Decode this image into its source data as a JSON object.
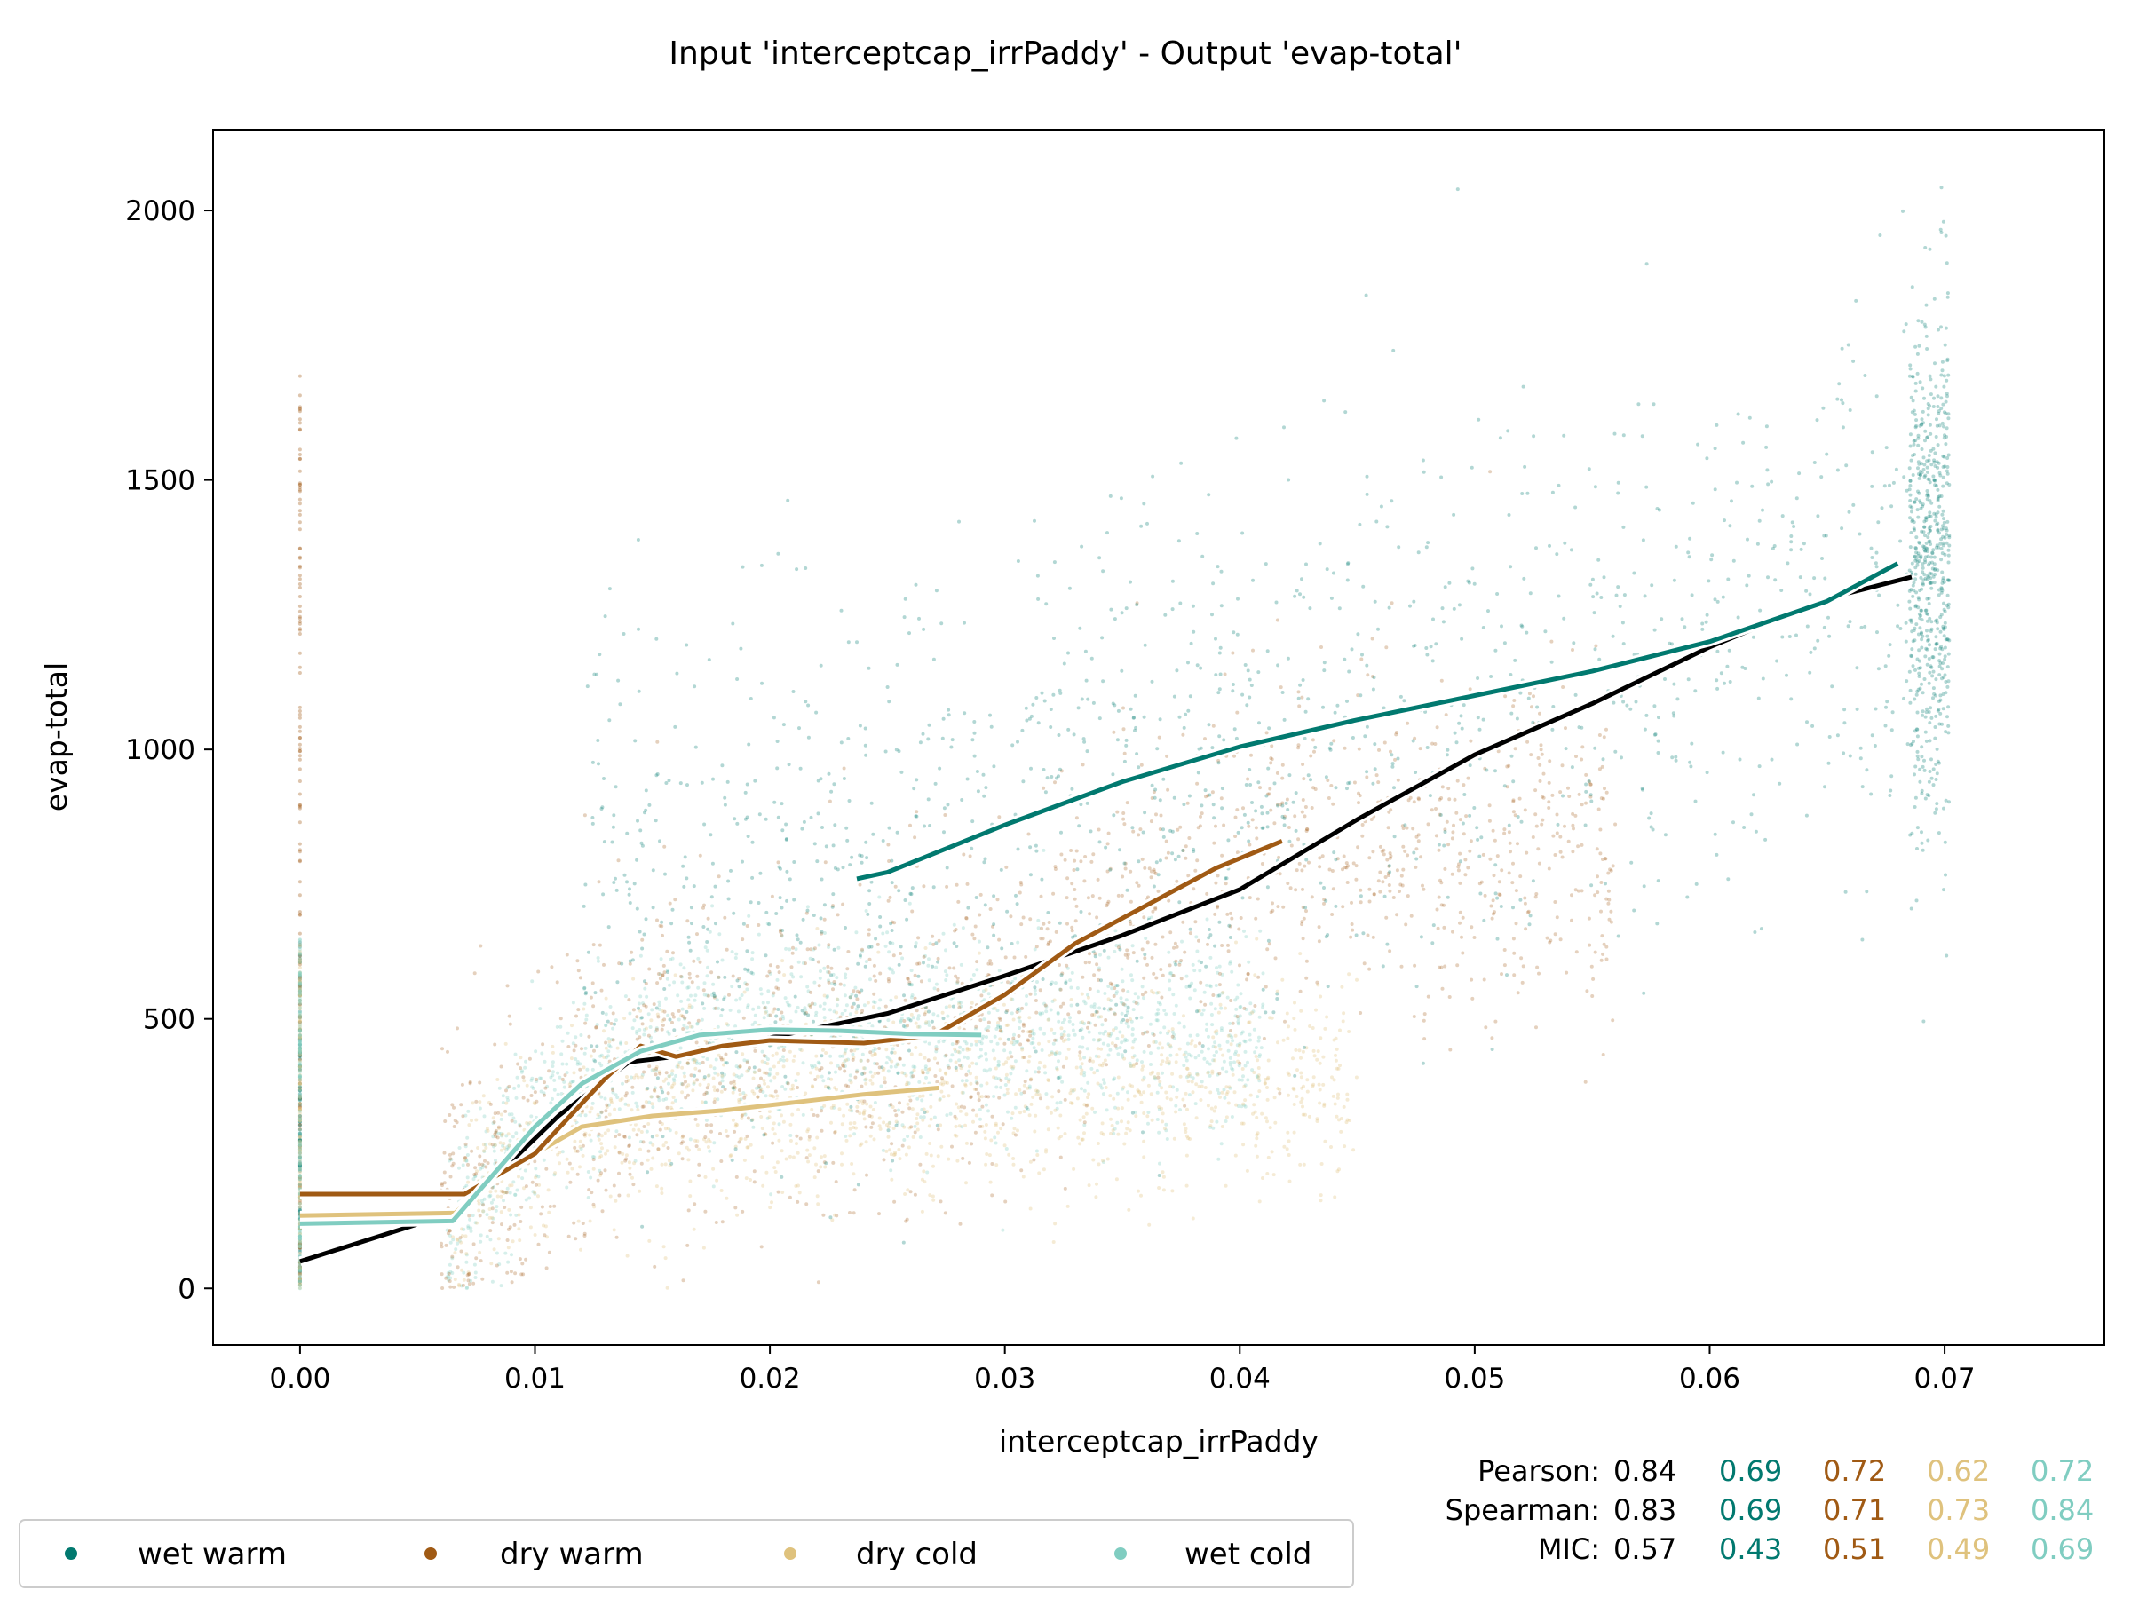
{
  "chart_data": {
    "type": "scatter",
    "title": "Input 'interceptcap_irrPaddy' - Output 'evap-total'",
    "xlabel": "interceptcap_irrPaddy",
    "ylabel": "evap-total",
    "xlim": [
      -0.0037,
      0.0768
    ],
    "ylim": [
      -105,
      2150
    ],
    "xticks": [
      "0.00",
      "0.01",
      "0.02",
      "0.03",
      "0.04",
      "0.05",
      "0.06",
      "0.07"
    ],
    "yticks": [
      "0",
      "500",
      "1000",
      "1500",
      "2000"
    ],
    "grid": false,
    "legend_position": "bottom-left",
    "series": [
      {
        "name": "wet warm",
        "color": "#01796f",
        "trend": [
          [
            0.0237,
            760
          ],
          [
            0.025,
            772
          ],
          [
            0.03,
            860
          ],
          [
            0.035,
            940
          ],
          [
            0.04,
            1005
          ],
          [
            0.045,
            1055
          ],
          [
            0.05,
            1100
          ],
          [
            0.055,
            1145
          ],
          [
            0.06,
            1200
          ],
          [
            0.065,
            1275
          ],
          [
            0.068,
            1345
          ]
        ]
      },
      {
        "name": "dry warm",
        "color": "#a05a14",
        "trend": [
          [
            0.0,
            175
          ],
          [
            0.007,
            175
          ],
          [
            0.01,
            250
          ],
          [
            0.013,
            390
          ],
          [
            0.0145,
            450
          ],
          [
            0.016,
            430
          ],
          [
            0.018,
            450
          ],
          [
            0.02,
            460
          ],
          [
            0.024,
            455
          ],
          [
            0.027,
            470
          ],
          [
            0.03,
            545
          ],
          [
            0.033,
            640
          ],
          [
            0.036,
            710
          ],
          [
            0.039,
            780
          ],
          [
            0.0418,
            830
          ]
        ]
      },
      {
        "name": "dry cold",
        "color": "#dfc27d",
        "trend": [
          [
            0.0,
            135
          ],
          [
            0.0066,
            140
          ],
          [
            0.008,
            195
          ],
          [
            0.01,
            250
          ],
          [
            0.012,
            300
          ],
          [
            0.015,
            320
          ],
          [
            0.018,
            330
          ],
          [
            0.021,
            345
          ],
          [
            0.024,
            360
          ],
          [
            0.0272,
            372
          ]
        ]
      },
      {
        "name": "wet cold",
        "color": "#80cdc1",
        "trend": [
          [
            0.0,
            120
          ],
          [
            0.0065,
            125
          ],
          [
            0.008,
            200
          ],
          [
            0.01,
            300
          ],
          [
            0.012,
            380
          ],
          [
            0.0145,
            440
          ],
          [
            0.017,
            470
          ],
          [
            0.02,
            480
          ],
          [
            0.023,
            478
          ],
          [
            0.026,
            472
          ],
          [
            0.029,
            470
          ]
        ]
      }
    ],
    "overall_trend": {
      "color": "#000000",
      "points": [
        [
          0.0,
          50
        ],
        [
          0.0065,
          140
        ],
        [
          0.0085,
          215
        ],
        [
          0.011,
          320
        ],
        [
          0.014,
          420
        ],
        [
          0.016,
          430
        ],
        [
          0.02,
          465
        ],
        [
          0.025,
          510
        ],
        [
          0.03,
          580
        ],
        [
          0.035,
          655
        ],
        [
          0.04,
          740
        ],
        [
          0.045,
          870
        ],
        [
          0.05,
          990
        ],
        [
          0.055,
          1085
        ],
        [
          0.06,
          1190
        ],
        [
          0.065,
          1280
        ],
        [
          0.0686,
          1320
        ]
      ]
    }
  },
  "stats": {
    "pearson_label": "Pearson:",
    "pearson_all": "0.84",
    "pearson": [
      "0.69",
      "0.72",
      "0.62",
      "0.72"
    ],
    "spearman_label": "Spearman:",
    "spearman_all": "0.83",
    "spearman": [
      "0.69",
      "0.71",
      "0.73",
      "0.84"
    ],
    "mic_label": "MIC:",
    "mic_all": "0.57",
    "mic": [
      "0.43",
      "0.51",
      "0.49",
      "0.69"
    ]
  }
}
